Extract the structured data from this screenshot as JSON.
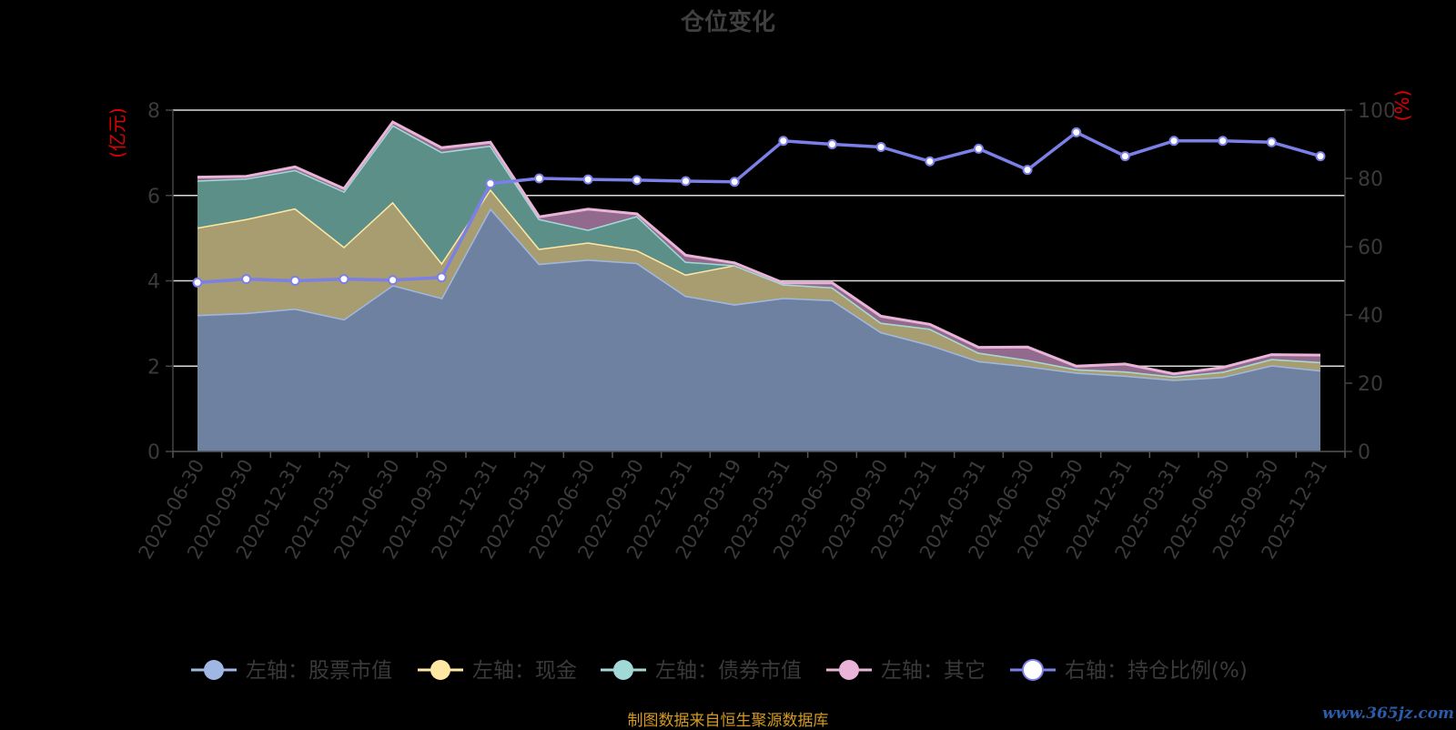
{
  "chart_data": {
    "type": "area",
    "title": "仓位变化",
    "left_axis_unit": "(亿元)",
    "right_axis_unit": "(%)",
    "ylim_left": [
      0,
      8
    ],
    "ylim_right": [
      0,
      100
    ],
    "yticks_left": [
      "0",
      "2",
      "4",
      "6",
      "8"
    ],
    "yticks_right": [
      "0",
      "20",
      "40",
      "60",
      "80",
      "100"
    ],
    "grid": true,
    "stacked": true,
    "legend_position": "bottom",
    "categories": [
      "2020-06-30",
      "2020-09-30",
      "2020-12-31",
      "2021-03-31",
      "2021-06-30",
      "2021-09-30",
      "2021-12-31",
      "2022-03-31",
      "2022-06-30",
      "2022-09-30",
      "2022-12-31",
      "2023-03-19",
      "2023-03-31",
      "2023-06-30",
      "2023-09-30",
      "2023-12-31",
      "2024-03-31",
      "2024-06-30",
      "2024-09-30",
      "2024-12-31",
      "2025-03-31",
      "2025-06-30",
      "2025-09-30",
      "2025-12-31"
    ],
    "series": [
      {
        "name": "左轴：股票市值",
        "axis": "left",
        "color": "#9fb8e3",
        "fill": "#6f81a0",
        "values": [
          3.2,
          3.25,
          3.35,
          3.1,
          3.9,
          3.6,
          5.7,
          4.4,
          4.5,
          4.42,
          3.65,
          3.45,
          3.6,
          3.55,
          2.8,
          2.5,
          2.12,
          2.0,
          1.85,
          1.78,
          1.68,
          1.75,
          2.02,
          1.9
        ]
      },
      {
        "name": "左轴：现金",
        "axis": "left",
        "color": "#ffe8a3",
        "fill": "#a79d70",
        "values": [
          2.05,
          2.2,
          2.35,
          1.7,
          1.95,
          0.82,
          0.45,
          0.35,
          0.4,
          0.3,
          0.5,
          0.92,
          0.32,
          0.3,
          0.22,
          0.38,
          0.2,
          0.15,
          0.08,
          0.1,
          0.08,
          0.12,
          0.15,
          0.2
        ]
      },
      {
        "name": "左轴：债券市值",
        "axis": "left",
        "color": "#a0d9d6",
        "fill": "#5d8f89",
        "values": [
          1.1,
          0.95,
          0.9,
          1.3,
          1.8,
          2.6,
          1.02,
          0.7,
          0.3,
          0.8,
          0.3,
          0,
          0,
          0,
          0,
          0,
          0,
          0,
          0,
          0,
          0,
          0,
          0,
          0
        ]
      },
      {
        "name": "左轴：其它",
        "axis": "left",
        "color": "#eab4d8",
        "fill": "#926a8e",
        "values": [
          0.08,
          0.05,
          0.07,
          0.06,
          0.07,
          0.1,
          0.08,
          0.05,
          0.48,
          0.05,
          0.15,
          0.05,
          0.03,
          0.1,
          0.15,
          0.1,
          0.12,
          0.3,
          0.07,
          0.17,
          0.06,
          0.1,
          0.1,
          0.16
        ]
      },
      {
        "name": "右轴：持仓比例(%)",
        "axis": "right",
        "color": "#7b7fe8",
        "values": [
          49.5,
          50.5,
          50,
          50.5,
          50.2,
          51,
          78.5,
          80,
          79.7,
          79.5,
          79.2,
          79,
          91,
          90,
          89.2,
          85,
          88.7,
          82.5,
          93.5,
          86.5,
          91,
          91,
          90.6,
          86.5
        ]
      }
    ]
  },
  "footer": "制图数据来自恒生聚源数据库",
  "watermark": "www.365jz.com"
}
